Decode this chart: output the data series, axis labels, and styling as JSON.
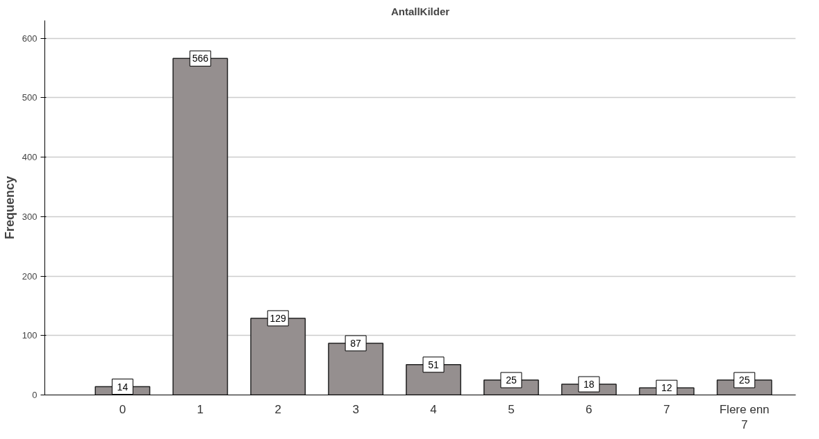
{
  "chart_data": {
    "type": "bar",
    "title": "AntallKilder",
    "ylabel": "Frequency",
    "categories": [
      "0",
      "1",
      "2",
      "3",
      "4",
      "5",
      "6",
      "7",
      "Flere enn\n7"
    ],
    "values": [
      14,
      566,
      129,
      87,
      51,
      25,
      18,
      12,
      25
    ],
    "color": "#958f8f",
    "ylim": [
      0,
      630
    ],
    "yticks": [
      0,
      100,
      200,
      300,
      400,
      500,
      600
    ],
    "grid": "y",
    "data_labels": true
  }
}
